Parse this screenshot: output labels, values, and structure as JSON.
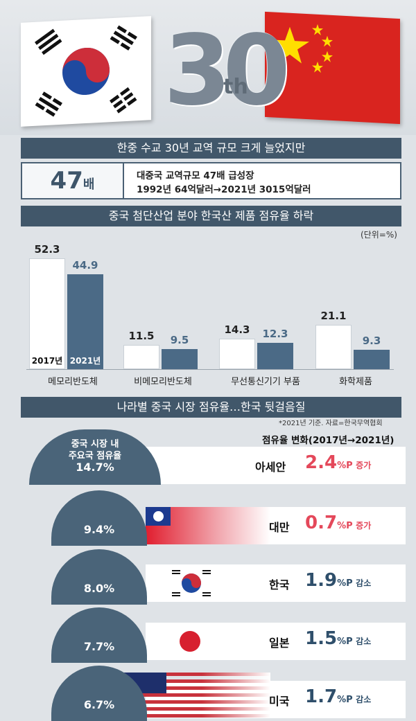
{
  "header": {
    "big_number": "30",
    "suffix": "th"
  },
  "section1": {
    "title": "한중 수교 30년 교역 규모 크게 늘었지만",
    "multiplier_num": "47",
    "multiplier_unit": "배",
    "line1": "대중국 교역규모 47배 급성장",
    "line2": "1992년 64억달러→2021년 3015억달러"
  },
  "section2": {
    "title": "중국 첨단산업 분야 한국산 제품 점유율 하락",
    "unit": "(단위=%)"
  },
  "section3": {
    "title": "나라별 중국 시장 점유율…한국 뒷걸음질",
    "note": "*2021년 기준. 자료=한국무역협회",
    "change_header": "점유율 변화(2017년→2021년)",
    "circle_caption_1": "중국 시장 내",
    "circle_caption_2": "주요국 점유율"
  },
  "colors": {
    "navy": "#41576a",
    "bar2021": "#4b6a86",
    "red": "#e4485a",
    "navytext": "#2f4f6b",
    "bar2017": "#ffffff"
  },
  "chart_data": [
    {
      "type": "bar",
      "title": "중국 첨단산업 분야 한국산 제품 점유율 하락",
      "unit": "%",
      "categories": [
        "메모리반도체",
        "비메모리반도체",
        "무선통신기기 부품",
        "화학제품"
      ],
      "series": [
        {
          "name": "2017년",
          "values": [
            52.3,
            11.5,
            14.3,
            21.1
          ]
        },
        {
          "name": "2021년",
          "values": [
            44.9,
            9.5,
            12.3,
            9.3
          ]
        }
      ],
      "labels_2017": [
        "52.3",
        "11.5",
        "14.3",
        "21.1"
      ],
      "labels_2021": [
        "44.9",
        "9.5",
        "12.3",
        "9.3"
      ],
      "ylim": [
        0,
        55
      ]
    },
    {
      "type": "table",
      "title": "나라별 중국 시장 점유율…한국 뒷걸음질",
      "rows": [
        {
          "country": "아세안",
          "share": "14.7%",
          "change": "2.4",
          "change_unit": "%P",
          "direction": "증가"
        },
        {
          "country": "대만",
          "share": "9.4%",
          "change": "0.7",
          "change_unit": "%P",
          "direction": "증가"
        },
        {
          "country": "한국",
          "share": "8.0%",
          "change": "1.9",
          "change_unit": "%P",
          "direction": "감소"
        },
        {
          "country": "일본",
          "share": "7.7%",
          "change": "1.5",
          "change_unit": "%P",
          "direction": "감소"
        },
        {
          "country": "미국",
          "share": "6.7%",
          "change": "1.7",
          "change_unit": "%P",
          "direction": "감소"
        }
      ]
    }
  ]
}
